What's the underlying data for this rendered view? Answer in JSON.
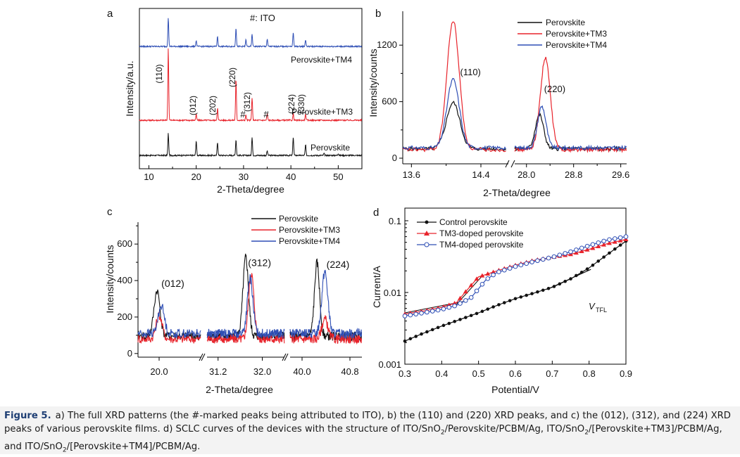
{
  "figure": {
    "caption_label": "Figure 5.",
    "caption_parts": [
      {
        "t": "a) The full XRD patterns (the #-marked peaks being attributed to ITO), b) the (110) and (220) XRD peaks, and c) the (012), (312), and (224) XRD peaks of various perovskite films. d) SCLC curves of the devices with the structure of ITO/SnO"
      },
      {
        "t": "2",
        "sub": true
      },
      {
        "t": "/Perovskite/PCBM/Ag, ITO/SnO"
      },
      {
        "t": "2",
        "sub": true
      },
      {
        "t": "/[Perovskite+TM3]/PCBM/Ag, and ITO/SnO"
      },
      {
        "t": "2",
        "sub": true
      },
      {
        "t": "/[Perovskite+TM4]/PCBM/Ag."
      }
    ]
  },
  "colors": {
    "perovskite": "#111111",
    "tm3": "#e8242c",
    "tm4": "#2f4fb5",
    "caption_label": "#1f3f74"
  },
  "chart_data": [
    {
      "panel": "a",
      "type": "line",
      "xlabel": "2-Theta/degree",
      "ylabel": "Intensity/a.u.",
      "xlim": [
        8,
        55
      ],
      "xticks": [
        10,
        20,
        30,
        40,
        50
      ],
      "yticks_visible": false,
      "annotation_top": "#: ITO",
      "series": [
        {
          "name": "Perovskite",
          "offset": 0,
          "baseline": 1,
          "peaks": [
            [
              14.1,
              33
            ],
            [
              20.0,
              22
            ],
            [
              24.5,
              20
            ],
            [
              28.4,
              24
            ],
            [
              31.8,
              27
            ],
            [
              35.0,
              7
            ],
            [
              40.5,
              28
            ],
            [
              43.1,
              16
            ],
            [
              47.0,
              3
            ],
            [
              50.0,
              3
            ]
          ]
        },
        {
          "name": "Perovskite+TM3",
          "offset": 45,
          "baseline": 1,
          "peaks": [
            [
              14.1,
              108
            ],
            [
              20.0,
              9
            ],
            [
              24.5,
              18
            ],
            [
              28.4,
              62
            ],
            [
              30.5,
              8
            ],
            [
              31.8,
              34
            ],
            [
              35.0,
              10
            ],
            [
              40.5,
              10
            ],
            [
              43.1,
              9
            ]
          ]
        },
        {
          "name": "Perovskite+TM4",
          "offset": 145,
          "baseline": 1,
          "peaks": [
            [
              14.1,
              43
            ],
            [
              20.0,
              9
            ],
            [
              24.5,
              15
            ],
            [
              28.4,
              28
            ],
            [
              30.5,
              10
            ],
            [
              31.8,
              18
            ],
            [
              35.0,
              11
            ],
            [
              40.5,
              21
            ],
            [
              43.1,
              10
            ]
          ]
        }
      ],
      "peak_labels": [
        {
          "text": "(110)",
          "x": 14.1
        },
        {
          "text": "(012)",
          "x": 20.0
        },
        {
          "text": "(202)",
          "x": 24.5
        },
        {
          "text": "(220)",
          "x": 28.4
        },
        {
          "text": "#",
          "x": 30.5
        },
        {
          "text": "(312)",
          "x": 31.8
        },
        {
          "text": "#",
          "x": 35.0
        },
        {
          "text": "(224)",
          "x": 40.5
        },
        {
          "text": "(330)",
          "x": 43.1
        }
      ]
    },
    {
      "panel": "b",
      "type": "line",
      "xlabel": "2-Theta/degree",
      "ylabel": "Intensity/counts",
      "axis_break": true,
      "segments": [
        [
          13.5,
          14.7
        ],
        [
          27.8,
          29.7
        ]
      ],
      "xticks": [
        13.6,
        14.4,
        28.0,
        28.8,
        29.6
      ],
      "ylim": [
        0,
        1500
      ],
      "yticks": [
        0,
        600,
        1200
      ],
      "legend": [
        "Perovskite",
        "Perovskite+TM3",
        "Perovskite+TM4"
      ],
      "series": [
        {
          "name": "Perovskite",
          "baseline": 100,
          "peaks": [
            [
              14.08,
              590,
              0.11
            ],
            [
              28.22,
              460,
              0.1
            ]
          ]
        },
        {
          "name": "Perovskite+TM3",
          "baseline": 90,
          "peaks": [
            [
              14.08,
              1460,
              0.1
            ],
            [
              28.32,
              1060,
              0.12
            ]
          ]
        },
        {
          "name": "Perovskite+TM4",
          "baseline": 110,
          "peaks": [
            [
              14.08,
              835,
              0.1
            ],
            [
              28.26,
              550,
              0.1
            ]
          ]
        }
      ],
      "annotations": [
        {
          "text": "(110)",
          "x": 14.28,
          "y": 880
        },
        {
          "text": "(220)",
          "x": 28.48,
          "y": 700
        }
      ]
    },
    {
      "panel": "c",
      "type": "line",
      "xlabel": "2-Theta/degree",
      "ylabel": "Intensity/counts",
      "axis_break": true,
      "segments": [
        [
          19.8,
          20.4
        ],
        [
          31.0,
          32.4
        ],
        [
          39.8,
          41.0
        ]
      ],
      "xticks": [
        20.0,
        31.2,
        32.0,
        40.0,
        40.8
      ],
      "ylim": [
        -20,
        720
      ],
      "yticks": [
        0,
        200,
        400,
        600
      ],
      "legend": [
        "Perovskite",
        "Perovskite+TM3",
        "Perovskite+TM4"
      ],
      "series": [
        {
          "name": "Perovskite",
          "baseline": 95,
          "peaks": [
            [
              19.98,
              345,
              0.04
            ],
            [
              31.7,
              525,
              0.07
            ],
            [
              40.25,
              495,
              0.06
            ]
          ]
        },
        {
          "name": "Perovskite+TM3",
          "baseline": 80,
          "peaks": [
            [
              20.0,
              210,
              0.04
            ],
            [
              31.8,
              440,
              0.07
            ],
            [
              40.38,
              190,
              0.07
            ]
          ]
        },
        {
          "name": "Perovskite+TM4",
          "baseline": 110,
          "peaks": [
            [
              20.02,
              265,
              0.04
            ],
            [
              31.78,
              410,
              0.07
            ],
            [
              40.38,
              450,
              0.07
            ]
          ]
        }
      ],
      "annotations": [
        {
          "text": "(012)",
          "x": 20.13,
          "y": 365
        },
        {
          "text": "(312)",
          "x": 31.95,
          "y": 480
        },
        {
          "text": "(224)",
          "x": 40.6,
          "y": 470
        }
      ]
    },
    {
      "panel": "d",
      "type": "line",
      "xlabel": "Potential/V",
      "ylabel": "Current/A",
      "yscale": "log",
      "xlim": [
        0.3,
        0.9
      ],
      "ylim": [
        0.001,
        0.15
      ],
      "xticks": [
        0.3,
        0.4,
        0.5,
        0.6,
        0.7,
        0.8,
        0.9
      ],
      "yticks": [
        0.001,
        0.01,
        0.1
      ],
      "ytick_labels": [
        "0.001",
        "0.01",
        "0.1"
      ],
      "legend": [
        "Control perovskite",
        "TM3-doped perovskite",
        "TM4-doped perovskite"
      ],
      "annotation_text": "V",
      "annotation_sub": "TFL",
      "series": [
        {
          "name": "Control perovskite",
          "points": [
            [
              0.3,
              0.0021
            ],
            [
              0.35,
              0.0027
            ],
            [
              0.4,
              0.0034
            ],
            [
              0.45,
              0.0042
            ],
            [
              0.5,
              0.0052
            ],
            [
              0.55,
              0.0066
            ],
            [
              0.6,
              0.0082
            ],
            [
              0.65,
              0.0098
            ],
            [
              0.7,
              0.0118
            ],
            [
              0.75,
              0.0155
            ],
            [
              0.8,
              0.022
            ],
            [
              0.85,
              0.034
            ],
            [
              0.9,
              0.052
            ]
          ]
        },
        {
          "name": "TM3-doped perovskite",
          "points": [
            [
              0.3,
              0.005
            ],
            [
              0.35,
              0.0055
            ],
            [
              0.4,
              0.0062
            ],
            [
              0.44,
              0.0072
            ],
            [
              0.47,
              0.011
            ],
            [
              0.5,
              0.0165
            ],
            [
              0.55,
              0.02
            ],
            [
              0.6,
              0.024
            ],
            [
              0.65,
              0.028
            ],
            [
              0.7,
              0.031
            ],
            [
              0.75,
              0.034
            ],
            [
              0.8,
              0.04
            ],
            [
              0.85,
              0.048
            ],
            [
              0.9,
              0.055
            ]
          ]
        },
        {
          "name": "TM4-doped perovskite",
          "points": [
            [
              0.3,
              0.0047
            ],
            [
              0.35,
              0.0052
            ],
            [
              0.4,
              0.0058
            ],
            [
              0.44,
              0.0066
            ],
            [
              0.48,
              0.0085
            ],
            [
              0.52,
              0.015
            ],
            [
              0.55,
              0.019
            ],
            [
              0.6,
              0.023
            ],
            [
              0.65,
              0.027
            ],
            [
              0.7,
              0.031
            ],
            [
              0.75,
              0.037
            ],
            [
              0.8,
              0.045
            ],
            [
              0.85,
              0.054
            ],
            [
              0.9,
              0.06
            ]
          ]
        }
      ]
    }
  ]
}
